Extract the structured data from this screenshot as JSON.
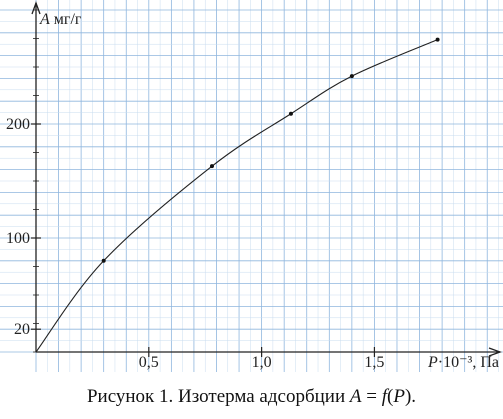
{
  "chart_data": {
    "type": "line",
    "ylabel_symbol": "A",
    "ylabel_unit": "мг/г",
    "xlabel_symbol": "P",
    "xlabel_unit": "·10⁻³, Па",
    "x": [
      0,
      0.3,
      0.78,
      1.13,
      1.4,
      1.78
    ],
    "y": [
      0,
      80,
      163,
      209,
      242,
      274
    ],
    "xticks": [
      0.5,
      1.0,
      1.5
    ],
    "xtick_labels": [
      "0,5",
      "1,0",
      "1,5"
    ],
    "yticks": [
      20,
      100,
      200
    ],
    "ytick_labels": [
      "20",
      "100",
      "200"
    ],
    "xlim": [
      0,
      2.03
    ],
    "ylim": [
      0,
      300
    ],
    "grid": true,
    "grid_color": "#8fb6de",
    "line_color": "#222222"
  },
  "caption": {
    "prefix": "Рисунок 1. Изотерма адсорбции ",
    "A": "A",
    "eq": " = ",
    "f": "f",
    "open": "(",
    "P": "P",
    "close": ")."
  }
}
